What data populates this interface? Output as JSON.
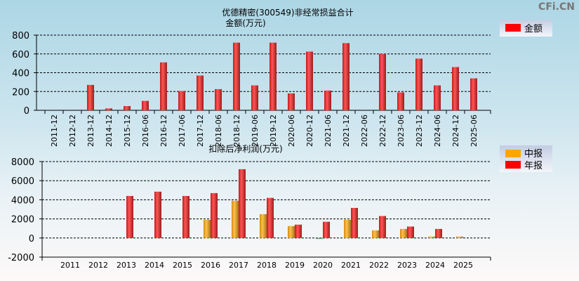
{
  "watermark": "CFi.CN",
  "colors": {
    "red": "#ff0000",
    "orange": "#ffa500"
  },
  "chart_data": [
    {
      "type": "bar",
      "title": "优德精密(300549)非经常损益合计",
      "ylabel": "金额(万元)",
      "legend": [
        "金额"
      ],
      "legend_position": "top-right",
      "ylim": [
        0,
        800
      ],
      "yticks": [
        0,
        200,
        400,
        600,
        800
      ],
      "grid": true,
      "categories": [
        "2011-12",
        "2012-12",
        "2013-12",
        "2014-12",
        "2015-12",
        "2016-06",
        "2016-12",
        "2017-06",
        "2017-12",
        "2018-06",
        "2018-12",
        "2019-06",
        "2019-12",
        "2020-06",
        "2020-12",
        "2021-06",
        "2021-12",
        "2022-06",
        "2022-12",
        "2023-06",
        "2023-12",
        "2024-06",
        "2024-12",
        "2025-06"
      ],
      "series": [
        {
          "name": "金额",
          "values": [
            0,
            0,
            270,
            20,
            45,
            100,
            510,
            205,
            370,
            225,
            720,
            265,
            720,
            180,
            625,
            210,
            715,
            0,
            600,
            190,
            550,
            265,
            460,
            340
          ]
        }
      ]
    },
    {
      "type": "bar",
      "title": "扣除后净利润(万元)",
      "legend": [
        "中报",
        "年报"
      ],
      "legend_position": "top-right",
      "ylim": [
        -2000,
        8000
      ],
      "yticks": [
        -2000,
        0,
        2000,
        4000,
        6000,
        8000
      ],
      "grid": true,
      "categories": [
        "2011",
        "2012",
        "2013",
        "2014",
        "2015",
        "2016",
        "2017",
        "2018",
        "2019",
        "2020",
        "2021",
        "2022",
        "2023",
        "2024",
        "2025"
      ],
      "series": [
        {
          "name": "中报",
          "values": [
            null,
            null,
            null,
            null,
            null,
            1900,
            3900,
            2500,
            1250,
            -100,
            1900,
            800,
            950,
            150,
            150
          ]
        },
        {
          "name": "年报",
          "values": [
            null,
            null,
            4400,
            4850,
            4400,
            4700,
            7200,
            4200,
            1400,
            1700,
            3150,
            2300,
            1200,
            950,
            null
          ]
        }
      ]
    }
  ]
}
